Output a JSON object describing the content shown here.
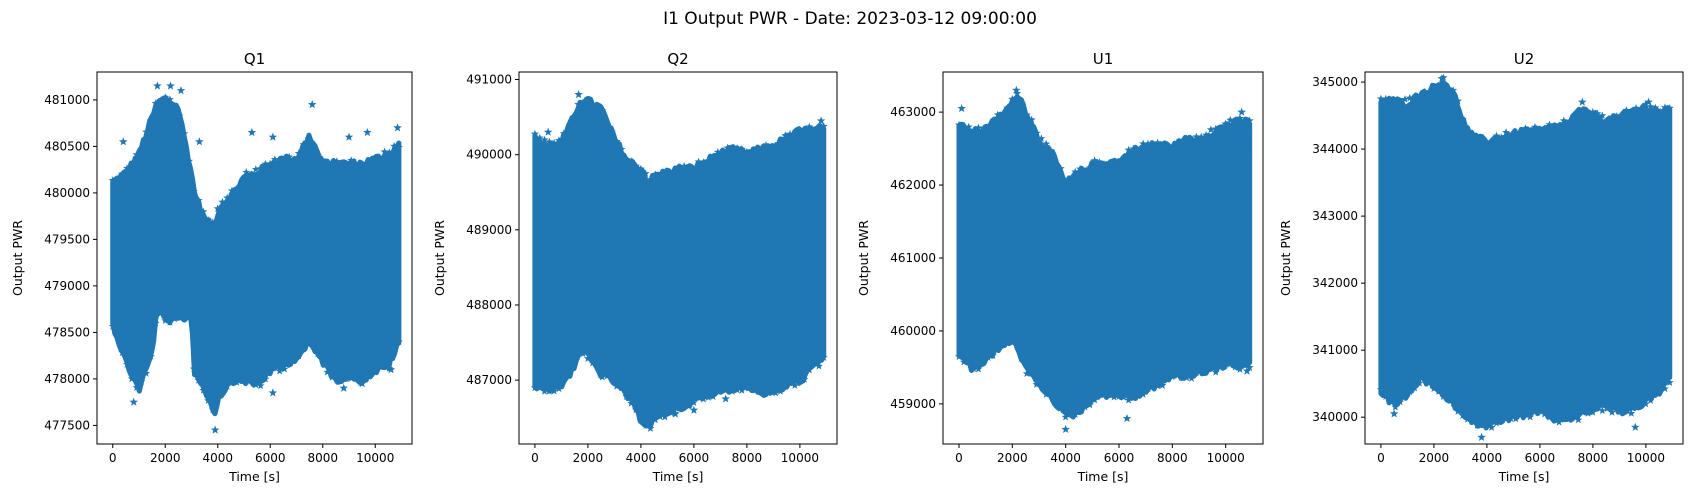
{
  "figure": {
    "suptitle": "I1 Output PWR - Date: 2023-03-12 09:00:00",
    "marker": "star",
    "color": "#1f77b4"
  },
  "chart_data": [
    {
      "type": "scatter",
      "title": "Q1",
      "xlabel": "Time [s]",
      "ylabel": "Output PWR",
      "xlim": [
        -600,
        11400
      ],
      "ylim": [
        477300,
        481300
      ],
      "xticks": [
        0,
        2000,
        4000,
        6000,
        8000,
        10000
      ],
      "yticks": [
        477500,
        478000,
        478500,
        479000,
        479500,
        480000,
        480500,
        481000
      ],
      "grid": false,
      "band": {
        "x": [
          0,
          500,
          1000,
          1500,
          1700,
          2000,
          2500,
          3000,
          3100,
          3500,
          3900,
          4000,
          4500,
          5000,
          5500,
          6000,
          6500,
          7000,
          7500,
          8000,
          8500,
          9000,
          9500,
          10000,
          10500,
          10900
        ],
        "upper": [
          480100,
          480200,
          480400,
          480800,
          480950,
          481000,
          480900,
          480200,
          480000,
          479700,
          479600,
          479800,
          479950,
          480150,
          480200,
          480300,
          480350,
          480350,
          480600,
          480300,
          480300,
          480300,
          480300,
          480350,
          480400,
          480500
        ],
        "lower": [
          478600,
          478200,
          477900,
          478300,
          478800,
          478650,
          478650,
          478700,
          478100,
          477900,
          477650,
          477800,
          478000,
          478000,
          477950,
          478100,
          478150,
          478250,
          478400,
          478200,
          478000,
          478050,
          478000,
          478100,
          478150,
          478400
        ]
      },
      "outliers": [
        {
          "x": 1700,
          "y": 481150
        },
        {
          "x": 2200,
          "y": 481150
        },
        {
          "x": 2600,
          "y": 481100
        },
        {
          "x": 400,
          "y": 480550
        },
        {
          "x": 3300,
          "y": 480550
        },
        {
          "x": 5300,
          "y": 480650
        },
        {
          "x": 6100,
          "y": 480600
        },
        {
          "x": 7600,
          "y": 480950
        },
        {
          "x": 9000,
          "y": 480600
        },
        {
          "x": 9700,
          "y": 480650
        },
        {
          "x": 10850,
          "y": 480700
        },
        {
          "x": 800,
          "y": 477750
        },
        {
          "x": 3900,
          "y": 477450
        },
        {
          "x": 6100,
          "y": 477850
        },
        {
          "x": 8800,
          "y": 477900
        },
        {
          "x": 9500,
          "y": 477950
        },
        {
          "x": 10600,
          "y": 478100
        }
      ]
    },
    {
      "type": "scatter",
      "title": "Q2",
      "xlabel": "Time [s]",
      "ylabel": "Output PWR",
      "xlim": [
        -600,
        11400
      ],
      "ylim": [
        486150,
        491100
      ],
      "xticks": [
        0,
        2000,
        4000,
        6000,
        8000,
        10000
      ],
      "yticks": [
        487000,
        488000,
        489000,
        490000,
        491000
      ],
      "grid": false,
      "band": {
        "x": [
          0,
          500,
          1000,
          1500,
          1700,
          2000,
          2500,
          3000,
          3500,
          4000,
          4300,
          4500,
          5000,
          5500,
          6000,
          6500,
          7000,
          7500,
          8000,
          8500,
          9000,
          9500,
          10000,
          10500,
          10900
        ],
        "upper": [
          490200,
          490100,
          490150,
          490500,
          490700,
          490700,
          490600,
          490200,
          489900,
          489800,
          489600,
          489700,
          489750,
          489800,
          489800,
          489900,
          490000,
          490050,
          490000,
          490050,
          490100,
          490200,
          490300,
          490300,
          490350
        ],
        "lower": [
          486950,
          486900,
          486950,
          487200,
          487450,
          487350,
          487100,
          487000,
          486800,
          486500,
          486400,
          486500,
          486600,
          486650,
          486750,
          486800,
          486900,
          486900,
          486950,
          486850,
          486850,
          486950,
          487000,
          487200,
          487300
        ]
      },
      "outliers": [
        {
          "x": 1650,
          "y": 490800
        },
        {
          "x": 500,
          "y": 490300
        },
        {
          "x": 10800,
          "y": 490450
        },
        {
          "x": 4200,
          "y": 486400
        },
        {
          "x": 5300,
          "y": 486550
        },
        {
          "x": 6000,
          "y": 486600
        },
        {
          "x": 7200,
          "y": 486750
        }
      ]
    },
    {
      "type": "scatter",
      "title": "U1",
      "xlabel": "Time [s]",
      "ylabel": "Output PWR",
      "xlim": [
        -600,
        11400
      ],
      "ylim": [
        458450,
        463550
      ],
      "xticks": [
        0,
        2000,
        4000,
        6000,
        8000,
        10000
      ],
      "yticks": [
        459000,
        460000,
        461000,
        462000,
        463000
      ],
      "grid": false,
      "band": {
        "x": [
          0,
          500,
          1000,
          1500,
          2000,
          2200,
          2500,
          3000,
          3500,
          4000,
          4500,
          5000,
          5500,
          6000,
          6500,
          7000,
          7500,
          8000,
          8500,
          9000,
          9500,
          10000,
          10500,
          10900
        ],
        "upper": [
          462800,
          462700,
          462750,
          462900,
          463100,
          463250,
          463000,
          462600,
          462400,
          462000,
          462150,
          462250,
          462300,
          462300,
          462450,
          462500,
          462550,
          462500,
          462600,
          462600,
          462700,
          462800,
          462850,
          462850
        ],
        "lower": [
          459700,
          459500,
          459600,
          459800,
          459900,
          459800,
          459500,
          459300,
          459100,
          458850,
          458900,
          459100,
          459150,
          459150,
          459100,
          459200,
          459300,
          459400,
          459400,
          459450,
          459500,
          459550,
          459550,
          459550
        ]
      },
      "outliers": [
        {
          "x": 100,
          "y": 463050
        },
        {
          "x": 2150,
          "y": 463300
        },
        {
          "x": 10600,
          "y": 463000
        },
        {
          "x": 4000,
          "y": 458650
        },
        {
          "x": 6300,
          "y": 458800
        },
        {
          "x": 10800,
          "y": 459450
        }
      ]
    },
    {
      "type": "scatter",
      "title": "U2",
      "xlabel": "Time [s]",
      "ylabel": "Output PWR",
      "xlim": [
        -600,
        11400
      ],
      "ylim": [
        339600,
        345150
      ],
      "xticks": [
        0,
        2000,
        4000,
        6000,
        8000,
        10000
      ],
      "yticks": [
        340000,
        341000,
        342000,
        343000,
        344000,
        345000
      ],
      "grid": false,
      "band": {
        "x": [
          0,
          500,
          1000,
          1500,
          2000,
          2400,
          2800,
          3200,
          3500,
          4000,
          4500,
          5000,
          5500,
          6000,
          6500,
          7000,
          7500,
          8000,
          8500,
          9000,
          9500,
          10000,
          10500,
          10900
        ],
        "upper": [
          344700,
          344700,
          344650,
          344800,
          344900,
          345000,
          344750,
          344300,
          344150,
          344100,
          344150,
          344200,
          344250,
          344250,
          344300,
          344350,
          344550,
          344500,
          344400,
          344450,
          344550,
          344600,
          344550,
          344550
        ],
        "lower": [
          340400,
          340200,
          340350,
          340600,
          340500,
          340300,
          340200,
          340050,
          339950,
          339900,
          339950,
          340050,
          340050,
          340100,
          340000,
          340000,
          340050,
          340150,
          340200,
          340100,
          340150,
          340250,
          340400,
          340600
        ]
      },
      "outliers": [
        {
          "x": 2300,
          "y": 345050
        },
        {
          "x": 7600,
          "y": 344700
        },
        {
          "x": 10100,
          "y": 344700
        },
        {
          "x": 3800,
          "y": 339700
        },
        {
          "x": 500,
          "y": 340050
        },
        {
          "x": 9600,
          "y": 339850
        }
      ]
    }
  ]
}
